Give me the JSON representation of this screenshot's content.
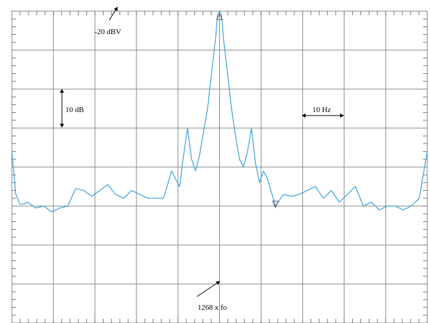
{
  "chart_data": {
    "type": "line",
    "title": "",
    "xlabel": "",
    "ylabel": "",
    "x": [
      -52,
      -51,
      -50,
      -49,
      -48,
      -46,
      -44,
      -42,
      -40,
      -38,
      -36,
      -34,
      -32,
      -30,
      -28,
      -26,
      -24,
      -22,
      -20,
      -18,
      -16,
      -14,
      -12,
      -10,
      -9,
      -8,
      -7,
      -6,
      -5,
      -4,
      -3,
      -2,
      -1,
      -0.5,
      0,
      0.5,
      1,
      2,
      3,
      4,
      5,
      6,
      7,
      8,
      9,
      10,
      11,
      12,
      14,
      16,
      18,
      20,
      22,
      24,
      26,
      28,
      30,
      32,
      34,
      36,
      38,
      40,
      42,
      44,
      46,
      48,
      50,
      51,
      52
    ],
    "series": [
      {
        "values": [
          -56,
          -67,
          -69.5,
          -69.5,
          -69,
          -70.5,
          -70,
          -71.5,
          -70.5,
          -70,
          -65.5,
          -66,
          -67.5,
          -66,
          -64.5,
          -67,
          -68,
          -66,
          -67,
          -68,
          -68,
          -68,
          -61,
          -65,
          -57,
          -50,
          -58,
          -61,
          -57,
          -51,
          -45,
          -36,
          -27,
          -21,
          -20,
          -21,
          -27,
          -36,
          -45,
          -52,
          -58,
          -60,
          -56,
          -50,
          -59,
          -64,
          -61,
          -63,
          -70,
          -67,
          -67.5,
          -67,
          -66,
          -65,
          -68,
          -66,
          -69,
          -67,
          -65,
          -70,
          -69,
          -71,
          -70,
          -70,
          -71,
          -70,
          -68,
          -62,
          -56
        ]
      }
    ],
    "xlim": [
      -52,
      52
    ],
    "ylim": [
      -100,
      -20
    ],
    "grid": true,
    "color": "#3aa0dc",
    "annotations": {
      "ref_level": "-20 dBV",
      "y_scale": "10 dB",
      "x_scale": "10 Hz",
      "center": "1268 x fo"
    }
  }
}
